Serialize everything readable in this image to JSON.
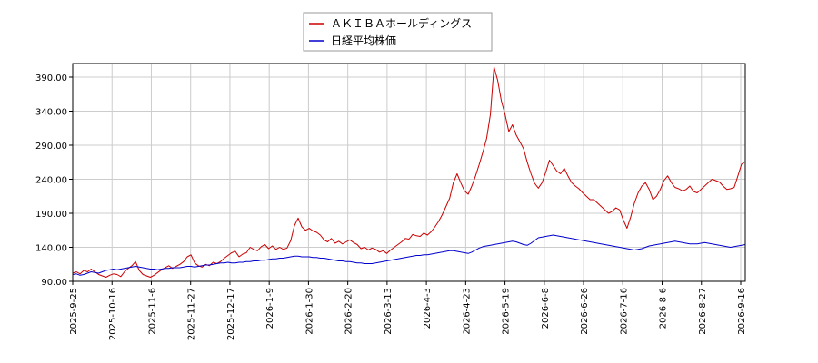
{
  "chart_data": {
    "type": "line",
    "legend_position": "top-center",
    "grid": true,
    "ylim": [
      90,
      410
    ],
    "y_ticks": [
      "90.00",
      "140.00",
      "190.00",
      "240.00",
      "290.00",
      "340.00",
      "390.00"
    ],
    "x_ticks": [
      "2025-9-25",
      "2025-10-16",
      "2025-11-6",
      "2025-11-27",
      "2025-12-17",
      "2026-1-9",
      "2026-1-30",
      "2026-2-20",
      "2026-3-13",
      "2026-4-3",
      "2026-4-23",
      "2026-5-19",
      "2026-6-8",
      "2026-6-26",
      "2026-7-16",
      "2026-8-6",
      "2026-8-27",
      "2026-9-16"
    ],
    "series": [
      {
        "name": "ＡＫＩＢＡホールディングス",
        "color": "#cc0000",
        "values": [
          102,
          104,
          101,
          106,
          104,
          108,
          104,
          100,
          98,
          96,
          99,
          101,
          100,
          97,
          104,
          109,
          113,
          119,
          106,
          100,
          98,
          96,
          99,
          103,
          107,
          110,
          113,
          109,
          112,
          115,
          119,
          126,
          129,
          117,
          113,
          111,
          115,
          113,
          118,
          116,
          119,
          124,
          128,
          132,
          134,
          126,
          130,
          132,
          140,
          137,
          135,
          141,
          144,
          138,
          142,
          137,
          140,
          137,
          139,
          150,
          172,
          183,
          170,
          165,
          168,
          164,
          162,
          158,
          151,
          148,
          153,
          146,
          149,
          145,
          148,
          151,
          147,
          144,
          138,
          140,
          136,
          139,
          137,
          133,
          135,
          131,
          136,
          140,
          144,
          148,
          153,
          152,
          159,
          157,
          156,
          161,
          158,
          163,
          170,
          178,
          188,
          200,
          212,
          235,
          248,
          235,
          223,
          218,
          230,
          245,
          262,
          280,
          300,
          335,
          405,
          385,
          355,
          335,
          310,
          320,
          305,
          295,
          285,
          265,
          248,
          234,
          227,
          235,
          250,
          268,
          260,
          252,
          248,
          256,
          245,
          235,
          230,
          226,
          220,
          215,
          210,
          210,
          205,
          200,
          195,
          190,
          193,
          198,
          195,
          180,
          168,
          185,
          205,
          220,
          230,
          235,
          225,
          210,
          215,
          225,
          238,
          245,
          235,
          228,
          226,
          223,
          225,
          230,
          222,
          220,
          225,
          230,
          235,
          240,
          238,
          236,
          230,
          225,
          226,
          228,
          245,
          262,
          266
        ]
      },
      {
        "name": "日経平均株価",
        "color": "#0000cc",
        "values": [
          100,
          101,
          99,
          100,
          102,
          104,
          103,
          102,
          104,
          106,
          107,
          108,
          107,
          108,
          109,
          110,
          111,
          112,
          111,
          110,
          109,
          108,
          108,
          107,
          108,
          109,
          109,
          110,
          110,
          110,
          111,
          112,
          112,
          111,
          112,
          113,
          114,
          114,
          115,
          116,
          117,
          117,
          118,
          117,
          117,
          118,
          118,
          119,
          119,
          120,
          120,
          121,
          121,
          122,
          123,
          123,
          124,
          124,
          125,
          126,
          127,
          127,
          126,
          126,
          126,
          125,
          125,
          124,
          124,
          123,
          122,
          121,
          120,
          120,
          119,
          119,
          118,
          117,
          117,
          116,
          116,
          116,
          117,
          118,
          119,
          120,
          121,
          122,
          123,
          124,
          125,
          126,
          127,
          128,
          128,
          129,
          129,
          130,
          131,
          132,
          133,
          134,
          135,
          135,
          134,
          133,
          132,
          131,
          133,
          136,
          139,
          141,
          142,
          143,
          144,
          145,
          146,
          147,
          148,
          149,
          148,
          146,
          144,
          143,
          146,
          150,
          154,
          155,
          156,
          157,
          158,
          157,
          156,
          155,
          154,
          153,
          152,
          151,
          150,
          149,
          148,
          147,
          146,
          145,
          144,
          143,
          142,
          141,
          140,
          139,
          138,
          137,
          136,
          137,
          138,
          140,
          142,
          143,
          144,
          145,
          146,
          147,
          148,
          149,
          148,
          147,
          146,
          145,
          145,
          145,
          146,
          147,
          146,
          145,
          144,
          143,
          142,
          141,
          140,
          141,
          142,
          143,
          144
        ]
      }
    ]
  }
}
